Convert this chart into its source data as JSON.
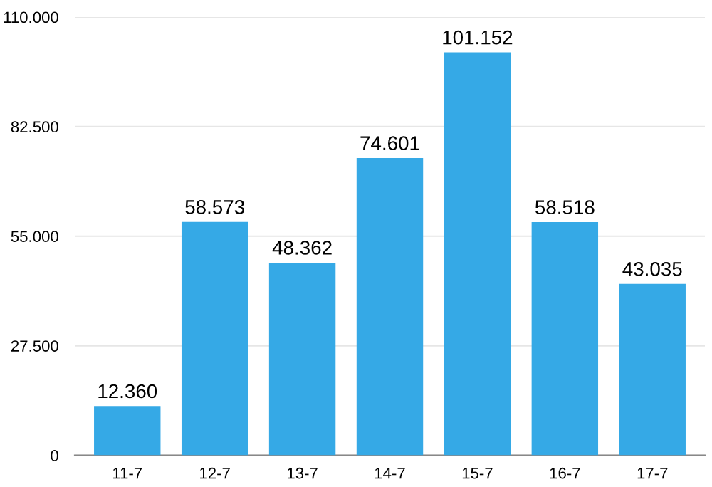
{
  "chart_data": {
    "type": "bar",
    "categories": [
      "11-7",
      "12-7",
      "13-7",
      "14-7",
      "15-7",
      "16-7",
      "17-7"
    ],
    "values": [
      12360,
      58573,
      48362,
      74601,
      101152,
      58518,
      43035
    ],
    "value_labels": [
      "12.360",
      "58.573",
      "48.362",
      "74.601",
      "101.152",
      "58.518",
      "43.035"
    ],
    "color": "#35a9e6",
    "ylim": [
      0,
      110000
    ],
    "yticks": [
      0,
      {
        "value": 27500,
        "label": "27.500"
      },
      {
        "value": 55000,
        "label": "55.000"
      },
      {
        "value": 82500,
        "label": "82.500"
      },
      {
        "value": 110000,
        "label": "110.000"
      }
    ],
    "grid": "y"
  }
}
